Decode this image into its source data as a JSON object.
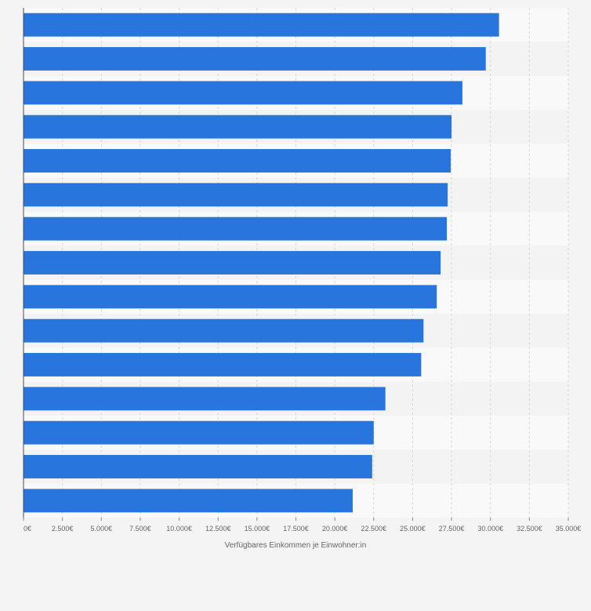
{
  "chart_data": {
    "type": "bar",
    "orientation": "horizontal",
    "title": "",
    "xlabel": "Verfügbares Einkommen je Einwohner:in",
    "ylabel": "",
    "xlim": [
      0,
      35000
    ],
    "x_ticks": [
      0,
      2500,
      5000,
      7500,
      10000,
      12500,
      15000,
      17500,
      20000,
      22500,
      25000,
      27500,
      30000,
      32500,
      35000
    ],
    "x_tick_labels": [
      "0€",
      "2.500€",
      "5.000€",
      "7.500€",
      "10.000€",
      "12.500€",
      "15.000€",
      "17.500€",
      "20.000€",
      "22.500€",
      "25.000€",
      "27.500€",
      "30.000€",
      "32.500€",
      "35.000€"
    ],
    "values": [
      30550,
      29700,
      28200,
      27500,
      27450,
      27250,
      27200,
      26800,
      26550,
      25700,
      25550,
      23250,
      22500,
      22400,
      21150
    ],
    "grid": true,
    "legend": "none",
    "bar_color": "#2876dd",
    "band_colors": [
      "#f9f9f9",
      "#f3f3f3"
    ]
  }
}
